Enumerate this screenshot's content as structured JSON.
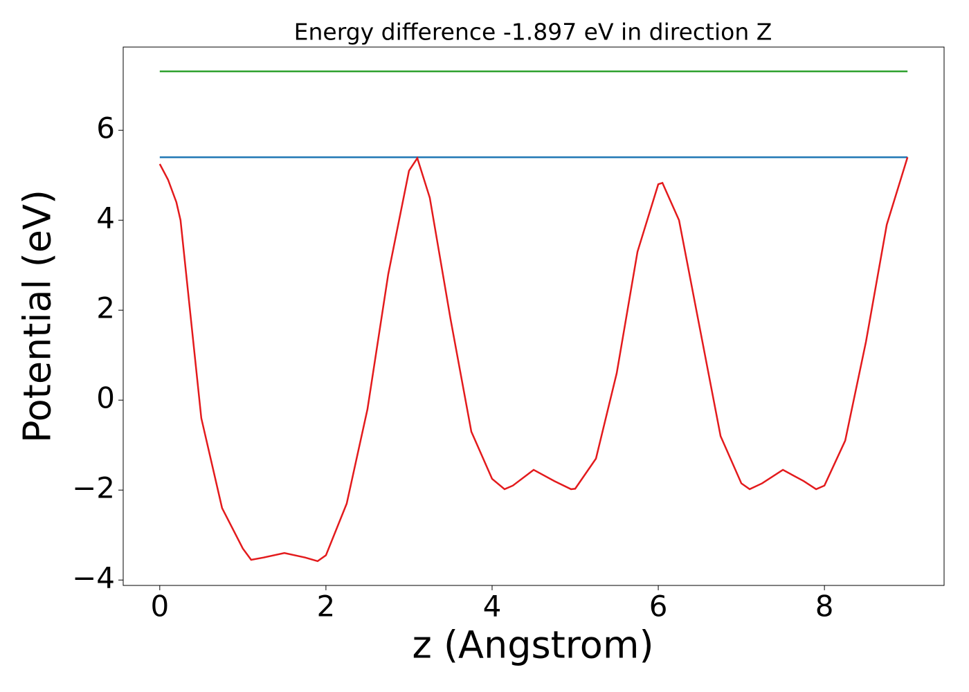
{
  "chart_data": {
    "type": "line",
    "title": "Energy difference -1.897 eV in direction Z",
    "x_label": "z (Angstrom)",
    "y_label": "Potential (eV)",
    "xlim": [
      -0.44,
      9.44
    ],
    "ylim": [
      -4.12,
      7.85
    ],
    "xticks": [
      0,
      2,
      4,
      6,
      8
    ],
    "yticks": [
      {
        "value": -4,
        "label": "−4"
      },
      {
        "value": -2,
        "label": "−2"
      },
      0,
      2,
      4,
      6
    ],
    "grid": false,
    "series": [
      {
        "color": "#2ca02c",
        "x": [
          0,
          9
        ],
        "values": [
          7.31,
          7.31
        ]
      },
      {
        "color": "#1f77b4",
        "x": [
          0,
          9
        ],
        "values": [
          5.4,
          5.4
        ]
      },
      {
        "color": "#e31a1c",
        "x": [
          0,
          0.1,
          0.2,
          0.25,
          0.5,
          0.75,
          1.0,
          1.1,
          1.25,
          1.5,
          1.75,
          1.9,
          2.0,
          2.25,
          2.5,
          2.75,
          3.0,
          3.1,
          3.25,
          3.5,
          3.75,
          4.0,
          4.15,
          4.25,
          4.5,
          4.75,
          4.95,
          5.0,
          5.25,
          5.5,
          5.75,
          6.0,
          6.05,
          6.25,
          6.5,
          6.75,
          7.0,
          7.1,
          7.25,
          7.5,
          7.75,
          7.9,
          8.0,
          8.25,
          8.5,
          8.75,
          9.0
        ],
        "values": [
          5.25,
          4.9,
          4.4,
          4.0,
          -0.4,
          -2.4,
          -3.3,
          -3.55,
          -3.5,
          -3.4,
          -3.5,
          -3.58,
          -3.45,
          -2.3,
          -0.2,
          2.8,
          5.1,
          5.38,
          4.5,
          1.8,
          -0.7,
          -1.75,
          -1.98,
          -1.9,
          -1.55,
          -1.8,
          -1.98,
          -1.97,
          -1.3,
          0.6,
          3.3,
          4.8,
          4.83,
          4.0,
          1.6,
          -0.8,
          -1.85,
          -1.98,
          -1.85,
          -1.55,
          -1.8,
          -1.98,
          -1.9,
          -0.9,
          1.3,
          3.9,
          5.4
        ]
      }
    ]
  }
}
